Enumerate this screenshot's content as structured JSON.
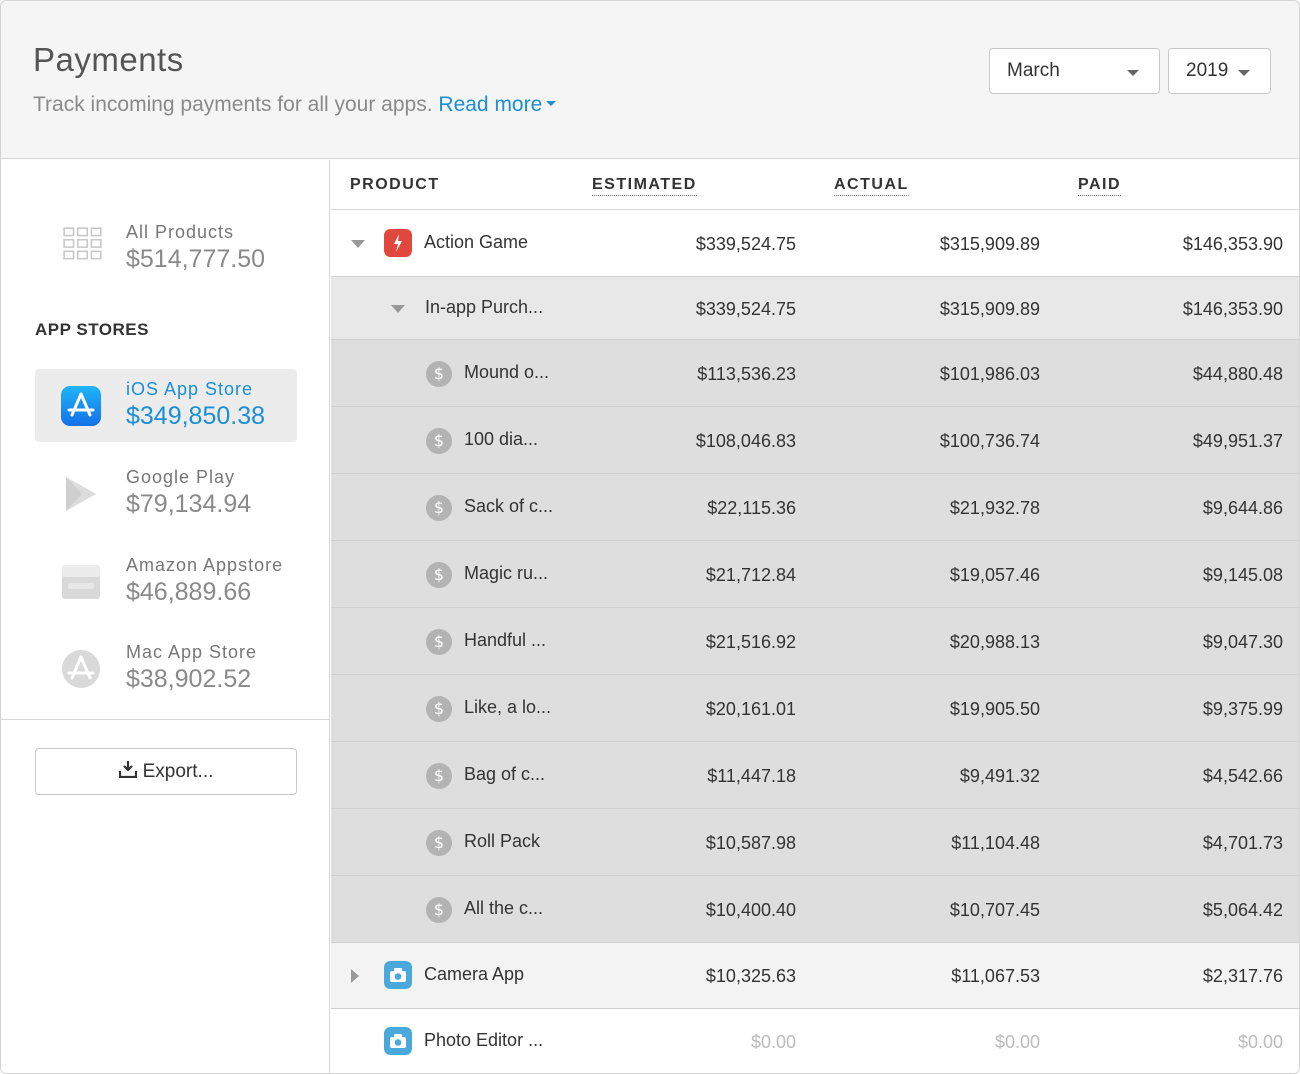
{
  "header": {
    "title": "Payments",
    "subtitle": "Track incoming payments for all your apps.",
    "read_more": "Read more",
    "month": "March",
    "year": "2019"
  },
  "sidebar": {
    "all_products": {
      "label": "All Products",
      "value": "$514,777.50",
      "icon": "grid-icon"
    },
    "section_title": "APP STORES",
    "stores": [
      {
        "label": "iOS App Store",
        "value": "$349,850.38",
        "icon": "ios-app-store-icon",
        "active": true
      },
      {
        "label": "Google Play",
        "value": "$79,134.94",
        "icon": "google-play-icon"
      },
      {
        "label": "Amazon Appstore",
        "value": "$46,889.66",
        "icon": "amazon-appstore-icon"
      },
      {
        "label": "Mac App Store",
        "value": "$38,902.52",
        "icon": "mac-app-store-icon"
      }
    ],
    "export_label": "Export..."
  },
  "table": {
    "columns": [
      "PRODUCT",
      "ESTIMATED",
      "ACTUAL",
      "PAID"
    ],
    "rows": [
      {
        "level": 0,
        "name": "Action Game",
        "estimated": "$339,524.75",
        "actual": "$315,909.89",
        "paid": "$146,353.90",
        "toggle": "expanded",
        "icon": "action-game-icon"
      },
      {
        "level": 1,
        "name": "In-app Purch...",
        "estimated": "$339,524.75",
        "actual": "$315,909.89",
        "paid": "$146,353.90",
        "toggle": "expanded"
      },
      {
        "level": 2,
        "name": "Mound o...",
        "estimated": "$113,536.23",
        "actual": "$101,986.03",
        "paid": "$44,880.48",
        "icon": "dollar-coin-icon"
      },
      {
        "level": 2,
        "name": "100 dia...",
        "estimated": "$108,046.83",
        "actual": "$100,736.74",
        "paid": "$49,951.37",
        "icon": "dollar-coin-icon"
      },
      {
        "level": 2,
        "name": "Sack of c...",
        "estimated": "$22,115.36",
        "actual": "$21,932.78",
        "paid": "$9,644.86",
        "icon": "dollar-coin-icon"
      },
      {
        "level": 2,
        "name": "Magic ru...",
        "estimated": "$21,712.84",
        "actual": "$19,057.46",
        "paid": "$9,145.08",
        "icon": "dollar-coin-icon"
      },
      {
        "level": 2,
        "name": "Handful ...",
        "estimated": "$21,516.92",
        "actual": "$20,988.13",
        "paid": "$9,047.30",
        "icon": "dollar-coin-icon"
      },
      {
        "level": 2,
        "name": "Like, a lo...",
        "estimated": "$20,161.01",
        "actual": "$19,905.50",
        "paid": "$9,375.99",
        "icon": "dollar-coin-icon"
      },
      {
        "level": 2,
        "name": "Bag of c...",
        "estimated": "$11,447.18",
        "actual": "$9,491.32",
        "paid": "$4,542.66",
        "icon": "dollar-coin-icon"
      },
      {
        "level": 2,
        "name": "Roll Pack",
        "estimated": "$10,587.98",
        "actual": "$11,104.48",
        "paid": "$4,701.73",
        "icon": "dollar-coin-icon"
      },
      {
        "level": 2,
        "name": "All the c...",
        "estimated": "$10,400.40",
        "actual": "$10,707.45",
        "paid": "$5,064.42",
        "icon": "dollar-coin-icon"
      },
      {
        "level": 0,
        "name": "Camera App",
        "estimated": "$10,325.63",
        "actual": "$11,067.53",
        "paid": "$2,317.76",
        "toggle": "collapsed",
        "icon": "camera-app-icon"
      },
      {
        "level": 0,
        "name": "Photo Editor ...",
        "estimated": "$0.00",
        "actual": "$0.00",
        "paid": "$0.00",
        "icon": "camera-app-icon",
        "zero": true
      }
    ]
  },
  "colors": {
    "accent": "#1a8fd6",
    "header_bg": "#f5f5f5",
    "level1_bg": "#e8e8e8",
    "level2_bg": "#dedede"
  }
}
